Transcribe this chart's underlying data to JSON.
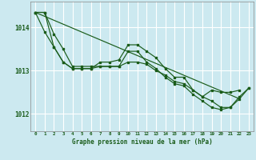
{
  "background_color": "#cce9f0",
  "grid_color": "#ffffff",
  "line_color": "#1a5c1a",
  "xlabel": "Graphe pression niveau de la mer (hPa)",
  "ylim": [
    1011.6,
    1014.6
  ],
  "xlim": [
    -0.5,
    23.5
  ],
  "yticks": [
    1012,
    1013,
    1014
  ],
  "xticks": [
    0,
    1,
    2,
    3,
    4,
    5,
    6,
    7,
    8,
    9,
    10,
    11,
    12,
    13,
    14,
    15,
    16,
    17,
    18,
    19,
    20,
    21,
    22,
    23
  ],
  "series": [
    {
      "x": [
        0,
        1,
        2,
        3,
        4,
        5,
        6,
        7,
        8,
        9,
        10,
        11,
        12,
        13,
        14,
        15,
        16,
        17,
        18,
        19,
        20,
        21,
        22
      ],
      "y": [
        1014.35,
        1013.9,
        1013.55,
        1013.2,
        1013.05,
        1013.05,
        1013.05,
        1013.2,
        1013.2,
        1013.25,
        1013.6,
        1013.6,
        1013.45,
        1013.3,
        1013.05,
        1012.85,
        1012.85,
        1012.55,
        1012.4,
        1012.55,
        1012.5,
        1012.5,
        1012.55
      ],
      "marker": true
    },
    {
      "x": [
        0,
        1,
        2,
        3,
        4,
        5,
        6,
        7,
        8,
        9,
        10,
        11,
        12,
        13,
        14,
        15,
        16,
        17,
        18,
        19,
        20,
        21,
        22,
        23
      ],
      "y": [
        1014.35,
        1014.35,
        1013.55,
        1013.2,
        1013.05,
        1013.05,
        1013.05,
        1013.1,
        1013.1,
        1013.1,
        1013.45,
        1013.45,
        1013.2,
        1013.05,
        1012.85,
        1012.7,
        1012.65,
        1012.45,
        1012.3,
        1012.15,
        1012.1,
        1012.15,
        1012.35,
        1012.6
      ],
      "marker": true
    },
    {
      "x": [
        0,
        1,
        2,
        3,
        4,
        5,
        6,
        7,
        8,
        9,
        10,
        11,
        12,
        13,
        14,
        15,
        16,
        17,
        18,
        19,
        20,
        21,
        22,
        23
      ],
      "y": [
        1014.35,
        1014.35,
        1013.85,
        1013.5,
        1013.1,
        1013.1,
        1013.1,
        1013.1,
        1013.1,
        1013.1,
        1013.2,
        1013.2,
        1013.15,
        1013.0,
        1012.9,
        1012.75,
        1012.7,
        1012.55,
        1012.4,
        1012.3,
        1012.15,
        1012.15,
        1012.4,
        1012.6
      ],
      "marker": true
    },
    {
      "x": [
        0,
        22
      ],
      "y": [
        1014.35,
        1012.35
      ],
      "marker": false
    }
  ]
}
